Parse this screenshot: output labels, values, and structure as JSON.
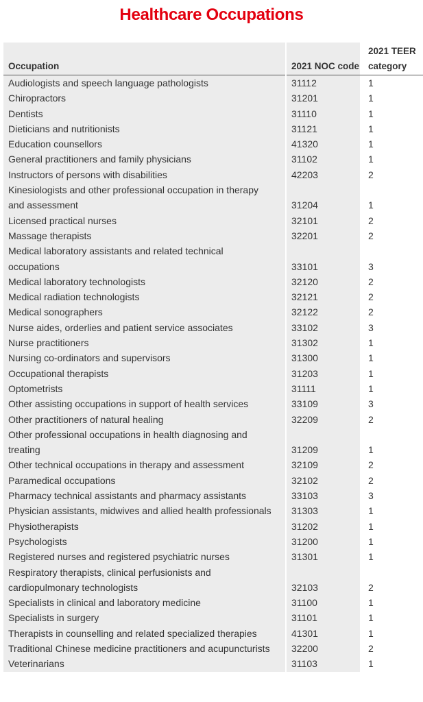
{
  "header": {
    "title": "Healthcare Occupations"
  },
  "table": {
    "columns": [
      "Occupation",
      "2021 NOC code",
      "2021 TEER category"
    ],
    "rows": [
      [
        "Audiologists and speech language pathologists",
        31112,
        1
      ],
      [
        "Chiropractors",
        31201,
        1
      ],
      [
        "Dentists",
        31110,
        1
      ],
      [
        "Dieticians and nutritionists",
        31121,
        1
      ],
      [
        "Education counsellors",
        41320,
        1
      ],
      [
        "General practitioners and family physicians",
        31102,
        1
      ],
      [
        "Instructors of persons with disabilities",
        42203,
        2
      ],
      [
        "Kinesiologists and other professional occupation in therapy and assessment",
        31204,
        1
      ],
      [
        "Licensed practical nurses",
        32101,
        2
      ],
      [
        "Massage therapists",
        32201,
        2
      ],
      [
        "Medical laboratory assistants and related technical occupations",
        33101,
        3
      ],
      [
        "Medical laboratory technologists",
        32120,
        2
      ],
      [
        "Medical radiation technologists",
        32121,
        2
      ],
      [
        "Medical sonographers",
        32122,
        2
      ],
      [
        "Nurse aides, orderlies and patient service associates",
        33102,
        3
      ],
      [
        "Nurse practitioners",
        31302,
        1
      ],
      [
        "Nursing co-ordinators and supervisors",
        31300,
        1
      ],
      [
        "Occupational therapists",
        31203,
        1
      ],
      [
        "Optometrists",
        31111,
        1
      ],
      [
        "Other assisting occupations in support of health services",
        33109,
        3
      ],
      [
        "Other practitioners of natural healing",
        32209,
        2
      ],
      [
        "Other professional occupations in health diagnosing and treating",
        31209,
        1
      ],
      [
        "Other technical occupations in therapy and assessment",
        32109,
        2
      ],
      [
        "Paramedical occupations",
        32102,
        2
      ],
      [
        "Pharmacy technical assistants and pharmacy assistants",
        33103,
        3
      ],
      [
        "Physician assistants, midwives and allied health professionals",
        31303,
        1
      ],
      [
        "Physiotherapists",
        31202,
        1
      ],
      [
        "Psychologists",
        31200,
        1
      ],
      [
        "Registered nurses and registered psychiatric nurses",
        31301,
        1
      ],
      [
        "Respiratory therapists, clinical perfusionists and cardiopulmonary technologists",
        32103,
        2
      ],
      [
        "Specialists in clinical and laboratory medicine",
        31100,
        1
      ],
      [
        "Specialists in surgery",
        31101,
        1
      ],
      [
        "Therapists in counselling and related specialized therapies",
        41301,
        1
      ],
      [
        "Traditional Chinese medicine practitioners and acupuncturists",
        32200,
        2
      ],
      [
        "Veterinarians",
        31103,
        1
      ]
    ]
  }
}
